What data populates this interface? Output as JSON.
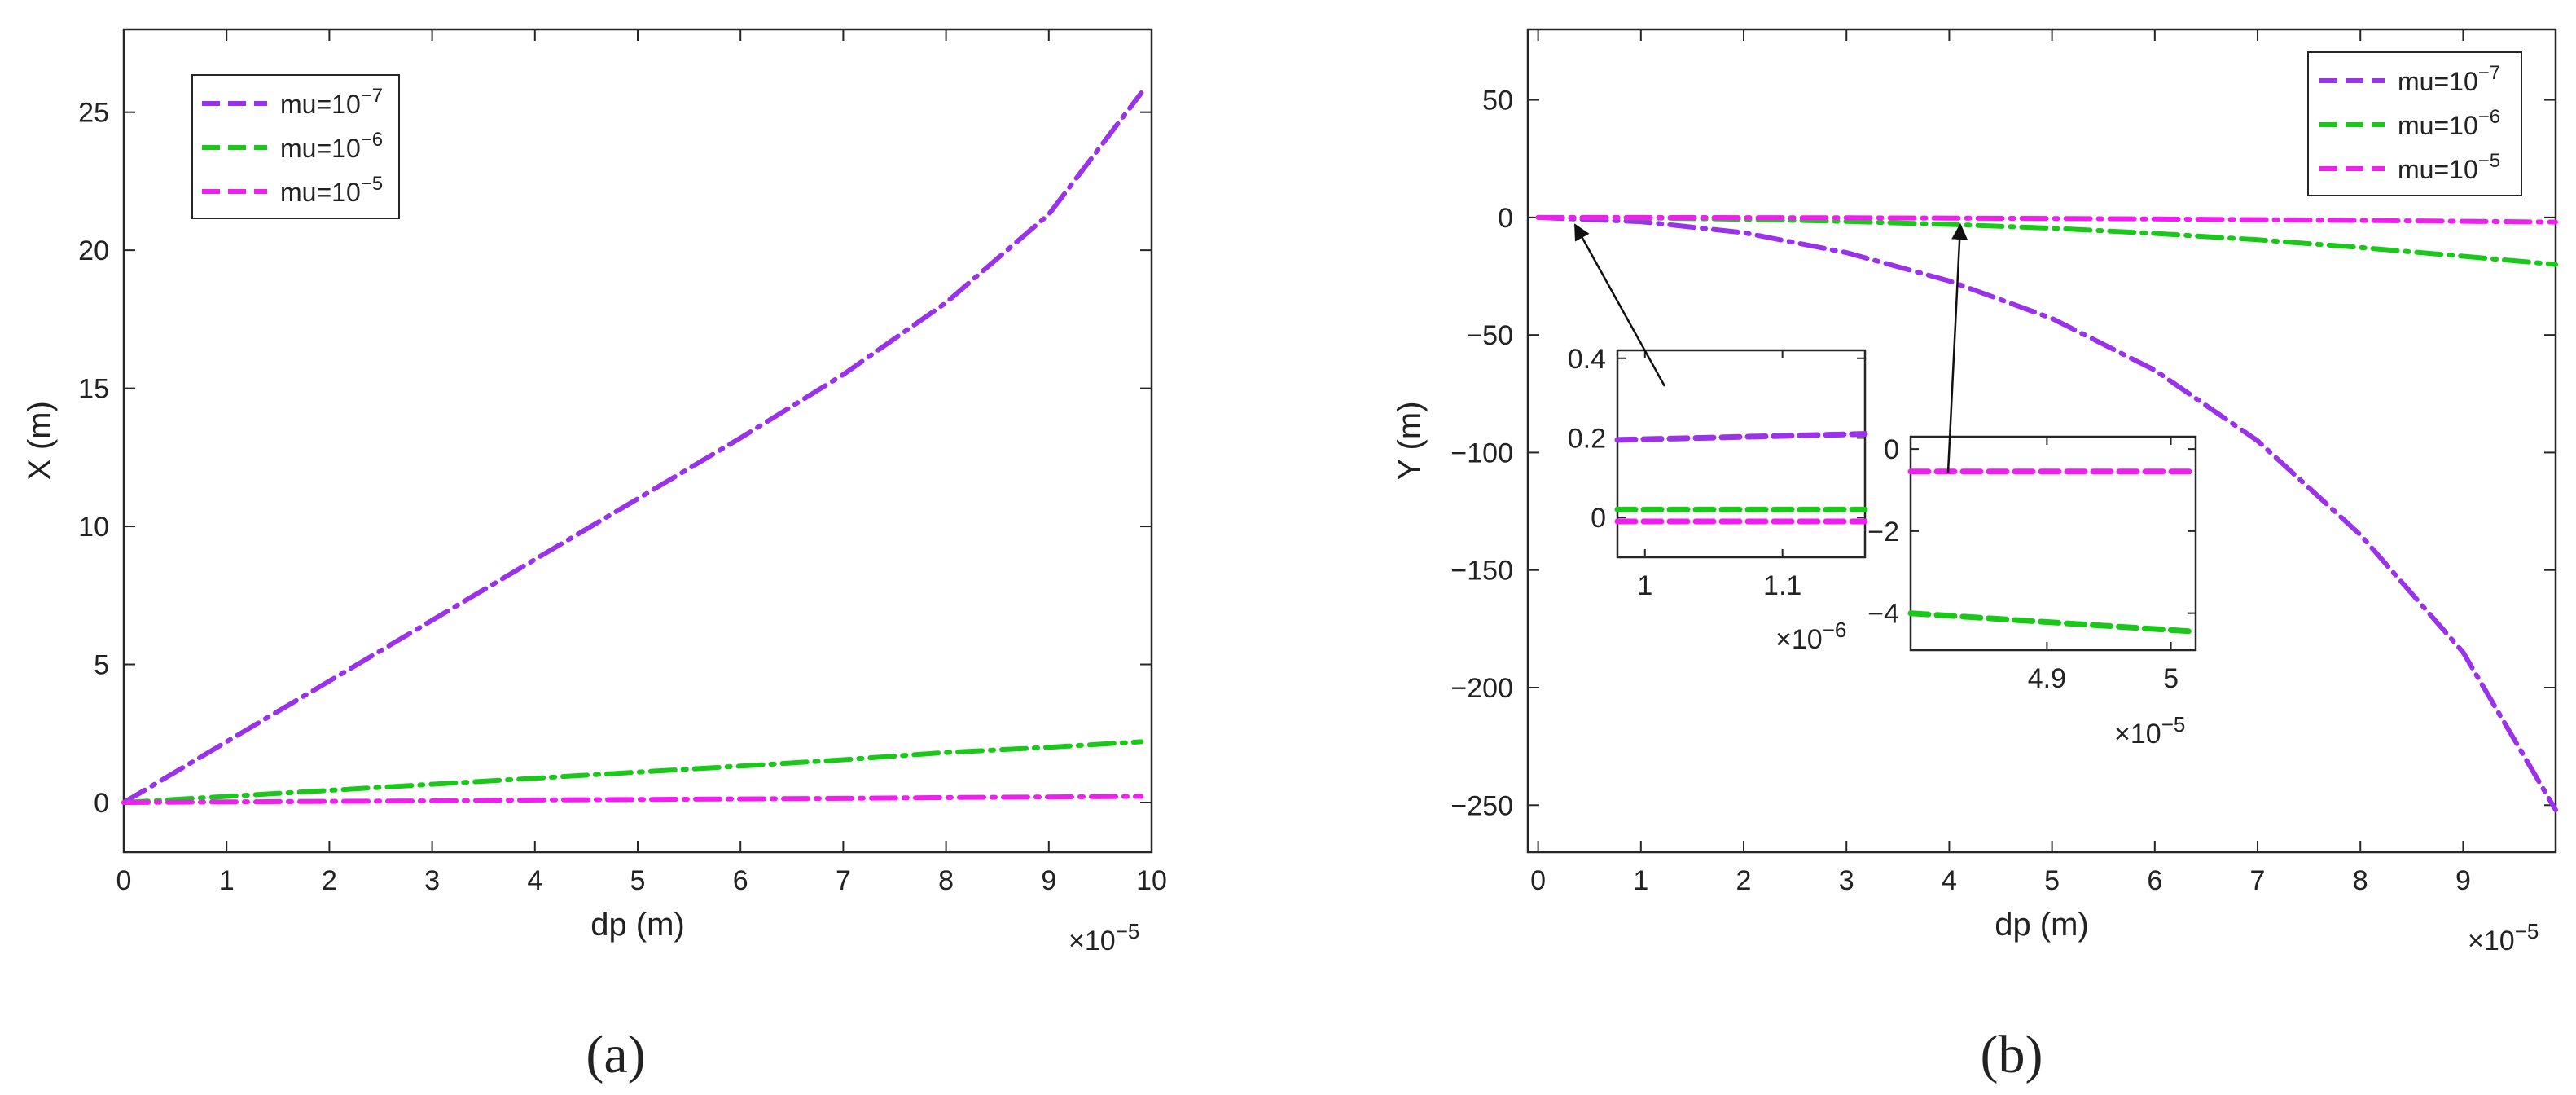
{
  "colors": {
    "mu7": "#9932e8",
    "mu6": "#19c819",
    "mu5": "#f01ef0",
    "axis": "#262626"
  },
  "chart_data": [
    {
      "type": "line",
      "panel_label": "a",
      "xlabel": "dp (m)",
      "ylabel": "X (m)",
      "x_multiplier": "10^-5",
      "xlim": [
        0,
        10
      ],
      "ylim": [
        -1.8,
        28
      ],
      "xticks": [
        0,
        1,
        2,
        3,
        4,
        5,
        6,
        7,
        8,
        9,
        10
      ],
      "yticks": [
        0,
        5,
        10,
        15,
        20,
        25
      ],
      "grid": false,
      "legend_position": "top-left",
      "series": [
        {
          "name": "mu=10^-7",
          "color_key": "mu7",
          "x": [
            0,
            1,
            2,
            3,
            4,
            5,
            6,
            7,
            8,
            9,
            9.9
          ],
          "y": [
            0,
            2.2,
            4.4,
            6.6,
            8.8,
            11.0,
            13.2,
            15.5,
            18.1,
            21.3,
            25.7
          ]
        },
        {
          "name": "mu=10^-6",
          "color_key": "mu6",
          "x": [
            0,
            1,
            2,
            3,
            4,
            5,
            6,
            7,
            8,
            9,
            9.9
          ],
          "y": [
            0,
            0.22,
            0.44,
            0.66,
            0.88,
            1.1,
            1.32,
            1.55,
            1.81,
            2.0,
            2.2
          ]
        },
        {
          "name": "mu=10^-5",
          "color_key": "mu5",
          "x": [
            0,
            1,
            2,
            3,
            4,
            5,
            6,
            7,
            8,
            9,
            9.9
          ],
          "y": [
            0,
            0.02,
            0.04,
            0.06,
            0.09,
            0.11,
            0.13,
            0.15,
            0.18,
            0.2,
            0.22
          ]
        }
      ]
    },
    {
      "type": "line",
      "panel_label": "b",
      "xlabel": "dp (m)",
      "ylabel": "Y (m)",
      "x_multiplier": "10^-5",
      "xlim": [
        -0.1,
        9.9
      ],
      "ylim": [
        -270,
        80
      ],
      "xticks": [
        0,
        1,
        2,
        3,
        4,
        5,
        6,
        7,
        8,
        9
      ],
      "yticks": [
        50,
        0,
        -50,
        -100,
        -150,
        -200,
        -250
      ],
      "grid": false,
      "legend_position": "top-right",
      "series": [
        {
          "name": "mu=10^-7",
          "color_key": "mu7",
          "x": [
            0,
            1,
            2,
            3,
            4,
            5,
            6,
            7,
            8,
            9,
            9.9
          ],
          "y": [
            0,
            -1.8,
            -6.5,
            -15,
            -27,
            -43,
            -65,
            -95,
            -135,
            -185,
            -252
          ]
        },
        {
          "name": "mu=10^-6",
          "color_key": "mu6",
          "x": [
            0,
            1,
            2,
            3,
            4,
            5,
            6,
            7,
            8,
            9,
            9.9
          ],
          "y": [
            0,
            -0.2,
            -0.8,
            -1.7,
            -3,
            -4.6,
            -6.8,
            -9.5,
            -12.8,
            -16.5,
            -20
          ]
        },
        {
          "name": "mu=10^-5",
          "color_key": "mu5",
          "x": [
            0,
            1,
            2,
            3,
            4,
            5,
            6,
            7,
            8,
            9,
            9.9
          ],
          "y": [
            0,
            -0.02,
            -0.08,
            -0.17,
            -0.3,
            -0.46,
            -0.68,
            -0.95,
            -1.28,
            -1.65,
            -2.0
          ]
        }
      ],
      "insets": [
        {
          "xlim": [
            0.98,
            1.16
          ],
          "ylim": [
            -0.1,
            0.42
          ],
          "xticks": [
            1,
            1.1
          ],
          "yticks": [
            0,
            0.2,
            0.4
          ],
          "x_multiplier": "10^-6",
          "arrow_target_x": 0.4,
          "series": [
            {
              "color_key": "mu7",
              "x": [
                0.98,
                1.16
              ],
              "y": [
                0.195,
                0.21
              ]
            },
            {
              "color_key": "mu6",
              "x": [
                0.98,
                1.16
              ],
              "y": [
                0.02,
                0.02
              ]
            },
            {
              "color_key": "mu5",
              "x": [
                0.98,
                1.16
              ],
              "y": [
                -0.01,
                -0.01
              ]
            }
          ]
        },
        {
          "xlim": [
            4.79,
            5.02
          ],
          "ylim": [
            -4.9,
            0.3
          ],
          "xticks": [
            4.9,
            5
          ],
          "yticks": [
            0,
            -2,
            -4
          ],
          "x_multiplier": "10^-5",
          "arrow_target_x": 4.1,
          "series": [
            {
              "color_key": "mu5",
              "x": [
                4.79,
                5.02
              ],
              "y": [
                -0.55,
                -0.55
              ]
            },
            {
              "color_key": "mu6",
              "x": [
                4.79,
                5.02
              ],
              "y": [
                -4.0,
                -4.45
              ]
            }
          ]
        }
      ]
    }
  ],
  "legend": {
    "items": [
      {
        "base": "mu=10",
        "exp": "-7",
        "color_key": "mu7"
      },
      {
        "base": "mu=10",
        "exp": "-6",
        "color_key": "mu6"
      },
      {
        "base": "mu=10",
        "exp": "-5",
        "color_key": "mu5"
      }
    ]
  },
  "captions": [
    "(a)",
    "(b)"
  ]
}
